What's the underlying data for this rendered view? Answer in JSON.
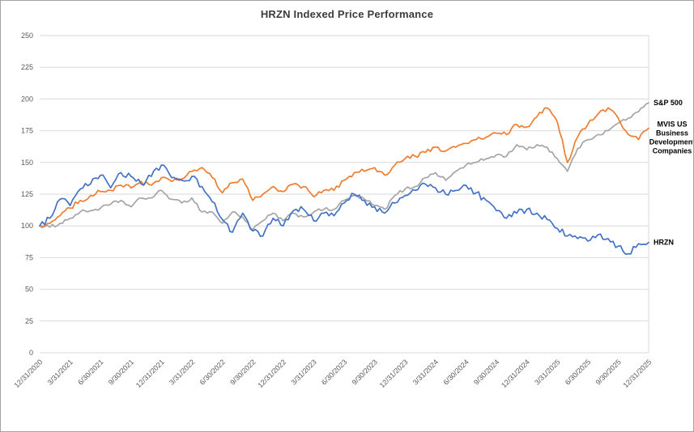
{
  "chart_data": {
    "type": "line",
    "title": "HRZN Indexed Price Performance",
    "xlabel": "",
    "ylabel": "",
    "ylim": [
      0,
      250
    ],
    "y_ticks": [
      0,
      25,
      50,
      75,
      100,
      125,
      150,
      175,
      200,
      225,
      250
    ],
    "grid": "horizontal",
    "legend_position": "end-of-line-labels-right",
    "x_note": "values are month-end indexed prices (100 = 12/31/2020), one value per month from 12/31/2020 through 12/31/2025; axis labels shown quarterly",
    "x_tick_labels": [
      "12/31/2020",
      "3/31/2021",
      "6/30/2021",
      "9/30/2021",
      "12/31/2021",
      "3/31/2022",
      "6/30/2022",
      "9/30/2022",
      "12/31/2022",
      "3/31/2023",
      "6/30/2023",
      "9/30/2023",
      "12/31/2023",
      "3/31/2024",
      "6/30/2024",
      "9/30/2024",
      "12/31/2024",
      "3/31/2025",
      "6/30/2025",
      "9/30/2025",
      "12/31/2025"
    ],
    "series": [
      {
        "id": "sp500",
        "name": "S&P 500",
        "label": "S&P 500",
        "color": "#A5A5A5",
        "values": [
          100,
          99,
          102,
          106,
          111,
          112,
          114,
          117,
          120,
          115,
          122,
          122,
          128,
          121,
          118,
          122,
          111,
          111,
          102,
          111,
          107,
          97,
          104,
          110,
          104,
          110,
          107,
          111,
          113,
          113,
          120,
          124,
          121,
          116,
          113,
          124,
          129,
          131,
          138,
          142,
          136,
          143,
          148,
          150,
          153,
          156,
          155,
          164,
          160,
          164,
          162,
          153,
          143,
          161,
          168,
          172,
          175,
          181,
          185,
          190,
          197
        ]
      },
      {
        "id": "mvis-bdc",
        "name": "MVIS US Business Development Companies",
        "label_lines": [
          "MVIS US",
          "Business",
          "Development",
          "Companies"
        ],
        "color": "#ED7D31",
        "values": [
          100,
          102,
          108,
          114,
          120,
          124,
          127,
          128,
          132,
          130,
          135,
          132,
          138,
          135,
          137,
          143,
          146,
          138,
          126,
          134,
          137,
          120,
          125,
          131,
          127,
          133,
          131,
          123,
          128,
          128,
          136,
          142,
          143,
          146,
          140,
          148,
          153,
          155,
          158,
          162,
          159,
          162,
          165,
          168,
          170,
          173,
          172,
          180,
          178,
          186,
          193,
          182,
          150,
          170,
          180,
          188,
          193,
          185,
          172,
          168,
          177
        ]
      },
      {
        "id": "hrzn",
        "name": "HRZN",
        "label": "HRZN",
        "color": "#4472C4",
        "values": [
          100,
          106,
          121,
          116,
          129,
          133,
          140,
          130,
          142,
          139,
          133,
          139,
          148,
          138,
          136,
          139,
          131,
          119,
          105,
          95,
          110,
          96,
          92,
          106,
          100,
          112,
          113,
          104,
          110,
          108,
          118,
          125,
          120,
          115,
          110,
          118,
          124,
          128,
          133,
          130,
          125,
          128,
          132,
          126,
          120,
          112,
          106,
          110,
          113,
          110,
          105,
          98,
          92,
          90,
          88,
          93,
          90,
          84,
          78,
          86,
          87
        ]
      }
    ]
  }
}
